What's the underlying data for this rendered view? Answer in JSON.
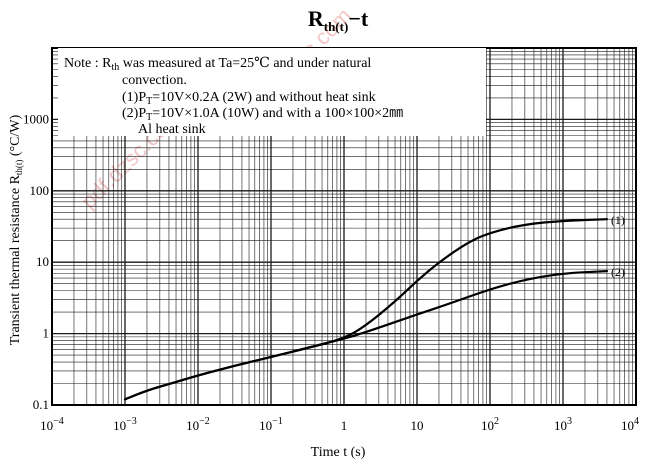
{
  "chart_data": {
    "type": "line",
    "title": {
      "main": "R",
      "sub": "th(t)",
      "suffix": "−t"
    },
    "xlabel": "Time t (s)",
    "ylabel": {
      "pre": "Transient thermal resistance R",
      "sub": "th(t)",
      "post": " (°C/W)"
    },
    "xscale": "log",
    "yscale": "log",
    "xlim": [
      0.0001,
      10000
    ],
    "ylim": [
      0.1,
      10000
    ],
    "grid": true,
    "x_ticks": [
      {
        "base": "10",
        "exp": "−4"
      },
      {
        "base": "10",
        "exp": "−3"
      },
      {
        "base": "10",
        "exp": "−2"
      },
      {
        "base": "10",
        "exp": "−1"
      },
      {
        "base": "1",
        "exp": ""
      },
      {
        "base": "10",
        "exp": ""
      },
      {
        "base": "10",
        "exp": "2"
      },
      {
        "base": "10",
        "exp": "3"
      },
      {
        "base": "10",
        "exp": "4"
      }
    ],
    "y_ticks": [
      "0.1",
      "1",
      "10",
      "100",
      "1000"
    ],
    "note": [
      "Note  :  R",
      "th",
      " was measured at Ta=25℃ and under natural",
      "convection.",
      "(1)P",
      "T",
      "=10V×0.2A (2W) and without heat sink",
      "(2)P",
      "T",
      "=10V×1.0A (10W) and with a 100×100×2㎜",
      "Al heat sink"
    ],
    "series": [
      {
        "name": "(1)",
        "points": [
          [
            0.001,
            0.12
          ],
          [
            0.002,
            0.16
          ],
          [
            0.005,
            0.21
          ],
          [
            0.01,
            0.26
          ],
          [
            0.03,
            0.35
          ],
          [
            0.1,
            0.47
          ],
          [
            0.3,
            0.62
          ],
          [
            1,
            0.85
          ],
          [
            2,
            1.3
          ],
          [
            5,
            2.8
          ],
          [
            10,
            5.5
          ],
          [
            20,
            10
          ],
          [
            50,
            19
          ],
          [
            100,
            26
          ],
          [
            300,
            34
          ],
          [
            1000,
            38
          ],
          [
            4000,
            40
          ]
        ]
      },
      {
        "name": "(2)",
        "points": [
          [
            0.001,
            0.12
          ],
          [
            0.002,
            0.16
          ],
          [
            0.005,
            0.21
          ],
          [
            0.01,
            0.26
          ],
          [
            0.03,
            0.35
          ],
          [
            0.1,
            0.47
          ],
          [
            0.3,
            0.62
          ],
          [
            1,
            0.85
          ],
          [
            2,
            1.05
          ],
          [
            5,
            1.45
          ],
          [
            10,
            1.85
          ],
          [
            30,
            2.7
          ],
          [
            100,
            4.2
          ],
          [
            300,
            5.7
          ],
          [
            1000,
            7.0
          ],
          [
            4000,
            7.5
          ]
        ]
      }
    ]
  },
  "watermarks": [
    "pdf.dzsc.com",
    "www.dzsc.com"
  ],
  "colors": {
    "grid": "#1a1a1a",
    "line": "#000000",
    "watermark": "#f2c6c6"
  }
}
